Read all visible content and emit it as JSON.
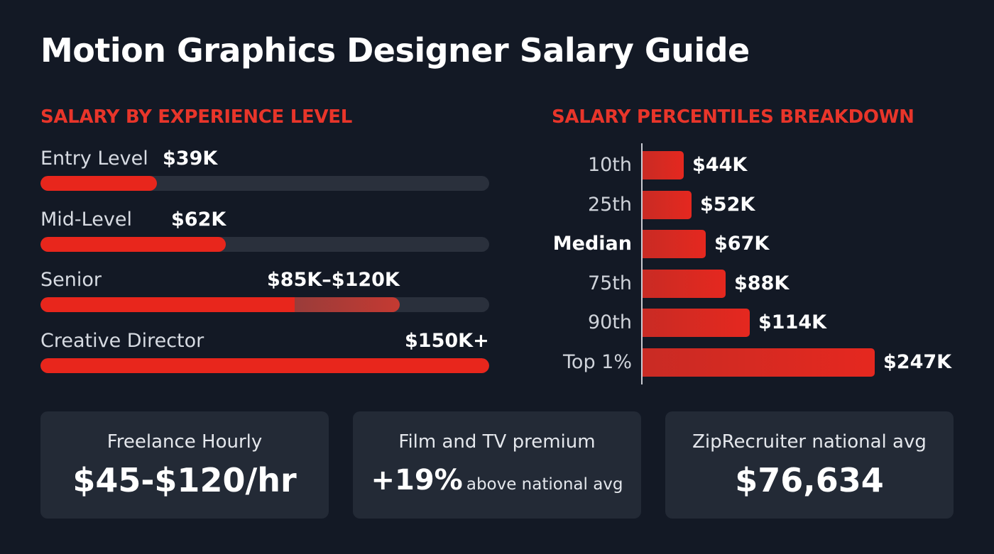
{
  "title": "Motion Graphics Designer Salary Guide",
  "colors": {
    "accent": "#e8261c",
    "background": "#131925",
    "card": "#232a36",
    "track": "#2a303c"
  },
  "chart_data": [
    {
      "type": "bar",
      "orientation": "horizontal",
      "title": "SALARY BY EXPERIENCE LEVEL",
      "xlim": [
        0,
        150
      ],
      "unit": "K USD",
      "items": [
        {
          "label": "Entry Level",
          "value_text": "$39K",
          "value": 39
        },
        {
          "label": "Mid-Level",
          "value_text": "$62K",
          "value": 62
        },
        {
          "label": "Senior",
          "value_text": "$85K–$120K",
          "value": 85,
          "value_high": 120
        },
        {
          "label": "Creative Director",
          "value_text": "$150K+",
          "value": 150
        }
      ]
    },
    {
      "type": "bar",
      "orientation": "horizontal",
      "title": "SALARY PERCENTILES BREAKDOWN",
      "xlim": [
        0,
        247
      ],
      "unit": "K USD",
      "categories": [
        "10th",
        "25th",
        "Median",
        "75th",
        "90th",
        "Top 1%"
      ],
      "value_texts": [
        "$44K",
        "$52K",
        "$67K",
        "$88K",
        "$114K",
        "$247K"
      ],
      "values": [
        44,
        52,
        67,
        88,
        114,
        247
      ],
      "emphasized": "Median"
    }
  ],
  "cards": [
    {
      "label": "Freelance Hourly",
      "value": "$45-$120/hr"
    },
    {
      "label": "Film and TV premium",
      "value": "+19%",
      "suffix": "above national avg"
    },
    {
      "label": "ZipRecruiter national avg",
      "value": "$76,634"
    }
  ]
}
